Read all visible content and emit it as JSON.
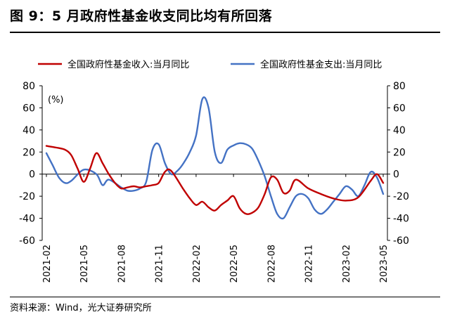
{
  "figure": {
    "title": "图 9：5 月政府性基金收支同比均有所回落",
    "source": "资料来源：Wind，光大证券研究所"
  },
  "chart_data": {
    "type": "line",
    "unit_label": "(%)",
    "ylim": [
      -60,
      80
    ],
    "y_ticks": [
      -60,
      -40,
      -20,
      0,
      20,
      40,
      60,
      80
    ],
    "y2_ticks": [
      -60,
      -40,
      -20,
      0,
      20,
      40,
      60,
      80
    ],
    "x_range": [
      0,
      27
    ],
    "x_ticks": [
      {
        "label": "2021-02",
        "x": 0
      },
      {
        "label": "2021-05",
        "x": 3
      },
      {
        "label": "2021-08",
        "x": 6
      },
      {
        "label": "2021-11",
        "x": 9
      },
      {
        "label": "2022-02",
        "x": 12
      },
      {
        "label": "2022-05",
        "x": 15
      },
      {
        "label": "2022-08",
        "x": 18
      },
      {
        "label": "2022-11",
        "x": 21
      },
      {
        "label": "2023-02",
        "x": 24
      },
      {
        "label": "2023-05",
        "x": 27
      }
    ],
    "legend_position": "top",
    "grid": false,
    "series": [
      {
        "name": "全国政府性基金收入:当月同比",
        "color": "#C00000",
        "x": [
          0,
          0.8,
          1.5,
          2,
          2.5,
          3,
          3.5,
          4,
          4.5,
          5,
          5.5,
          6,
          6.5,
          7,
          7.5,
          8,
          8.5,
          9,
          9.5,
          10,
          11,
          11.5,
          12,
          12.5,
          13,
          13.5,
          14,
          14.5,
          15,
          15.5,
          16,
          16.5,
          17,
          17.5,
          18,
          18.5,
          19,
          19.5,
          20,
          21,
          22,
          23,
          24,
          25,
          26,
          26.5,
          27
        ],
        "values": [
          25.5,
          24,
          22,
          17,
          5,
          -7,
          5,
          19,
          10,
          0,
          -8,
          -13,
          -12,
          -11,
          -12,
          -11,
          -10,
          -8,
          2,
          3,
          -14,
          -22,
          -28,
          -25,
          -30,
          -33,
          -28,
          -24,
          -20,
          -31,
          -36,
          -35,
          -30,
          -18,
          -3,
          -5,
          -17,
          -15,
          -5,
          -13,
          -18,
          -22,
          -24,
          -21,
          -6,
          0,
          -8
        ]
      },
      {
        "name": "全国政府性基金支出:当月同比",
        "color": "#4472C4",
        "x": [
          0,
          0.5,
          1,
          1.5,
          2,
          3,
          4,
          4.5,
          5,
          6,
          6.5,
          7,
          7.5,
          8,
          8.5,
          9,
          9.5,
          10,
          10.5,
          11,
          11.5,
          12,
          12.5,
          13,
          13.5,
          14,
          14.5,
          15,
          15.5,
          16,
          16.5,
          17,
          17.5,
          18,
          18.5,
          19,
          19.5,
          20,
          20.5,
          21,
          21.5,
          22,
          22.5,
          23,
          23.5,
          24,
          24.5,
          25,
          25.5,
          26,
          26.5,
          27
        ],
        "values": [
          19,
          8,
          -3,
          -8,
          -6,
          4,
          0,
          -10,
          -5,
          -12,
          -15,
          -15,
          -13,
          -7,
          22,
          27,
          10,
          0,
          3,
          10,
          20,
          35,
          68,
          60,
          20,
          10,
          22,
          26,
          28,
          27,
          23,
          12,
          -2,
          -20,
          -36,
          -40,
          -30,
          -20,
          -18,
          -22,
          -32,
          -36,
          -32,
          -25,
          -18,
          -11,
          -14,
          -20,
          -10,
          2,
          -3,
          -18
        ]
      }
    ]
  }
}
